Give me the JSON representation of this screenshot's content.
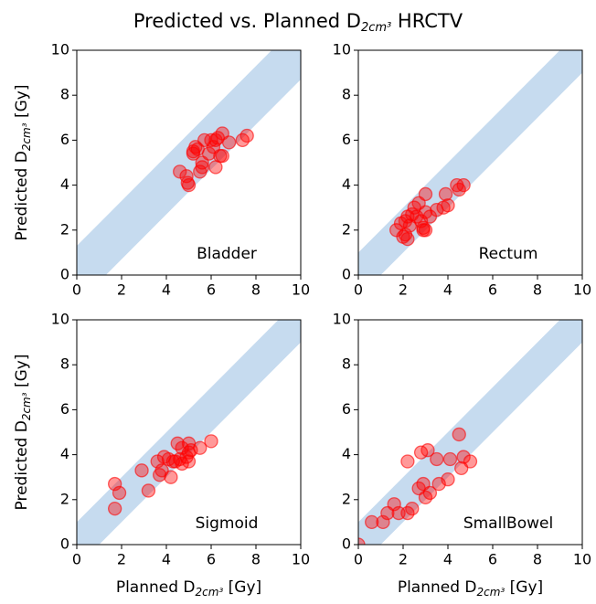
{
  "title": [
    "Predicted vs. Planned D",
    "2cm³",
    " HRCTV"
  ],
  "chart_data": [
    {
      "type": "scatter",
      "annotation": "Bladder",
      "ylabel": [
        "Predicted D",
        "2cm³",
        " [Gy]"
      ],
      "x": [
        4.6,
        4.9,
        5.0,
        4.95,
        5.2,
        5.3,
        5.4,
        5.5,
        5.6,
        5.6,
        5.7,
        5.9,
        6.0,
        6.1,
        6.2,
        6.2,
        6.3,
        6.4,
        6.5,
        6.5,
        6.8,
        7.4,
        7.6,
        5.2
      ],
      "y": [
        4.6,
        4.4,
        4.0,
        4.1,
        5.4,
        5.7,
        5.6,
        4.6,
        5.0,
        4.8,
        6.0,
        5.4,
        6.0,
        5.7,
        6.0,
        4.8,
        6.1,
        5.3,
        5.3,
        6.3,
        5.9,
        6.0,
        6.2,
        5.5
      ],
      "xlim": [
        0,
        10
      ],
      "ylim": [
        0,
        10
      ],
      "xticks": [
        0,
        2,
        4,
        6,
        8,
        10
      ],
      "yticks": [
        0,
        2,
        4,
        6,
        8,
        10
      ],
      "color": "#ff0000",
      "band_color": "#c6dbef",
      "band_halfwidth": 1.3
    },
    {
      "type": "scatter",
      "annotation": "Rectum",
      "x": [
        1.7,
        1.9,
        2.0,
        2.1,
        2.1,
        2.2,
        2.2,
        2.3,
        2.4,
        2.5,
        2.6,
        2.7,
        2.8,
        2.9,
        2.9,
        3.0,
        3.0,
        3.0,
        3.2,
        3.5,
        3.8,
        3.9,
        4.0,
        4.4,
        4.5,
        4.7
      ],
      "y": [
        2.0,
        2.3,
        1.7,
        1.8,
        2.4,
        1.6,
        2.6,
        2.2,
        2.7,
        3.0,
        2.6,
        3.2,
        2.4,
        2.0,
        2.1,
        2.0,
        2.8,
        3.6,
        2.6,
        2.9,
        3.0,
        3.6,
        3.1,
        4.0,
        3.8,
        4.0
      ],
      "xlim": [
        0,
        10
      ],
      "ylim": [
        0,
        10
      ],
      "xticks": [
        0,
        2,
        4,
        6,
        8,
        10
      ],
      "yticks": [
        0,
        2,
        4,
        6,
        8,
        10
      ],
      "color": "#ff0000",
      "band_color": "#c6dbef",
      "band_halfwidth": 1.0
    },
    {
      "type": "scatter",
      "annotation": "Sigmoid",
      "ylabel": [
        "Predicted D",
        "2cm³",
        " [Gy]"
      ],
      "xlabel": [
        "Planned D",
        "2cm³",
        " [Gy]"
      ],
      "x": [
        1.7,
        1.7,
        1.9,
        2.9,
        3.2,
        3.6,
        3.7,
        3.8,
        3.9,
        4.1,
        4.2,
        4.3,
        4.4,
        4.5,
        4.6,
        4.7,
        4.7,
        4.9,
        5.0,
        5.0,
        5.0,
        5.1,
        5.5,
        6.0
      ],
      "y": [
        1.6,
        2.7,
        2.3,
        3.3,
        2.4,
        3.7,
        3.1,
        3.3,
        3.9,
        3.8,
        3.0,
        3.7,
        3.7,
        4.5,
        3.8,
        4.3,
        3.6,
        3.9,
        3.7,
        4.1,
        4.5,
        4.2,
        4.3,
        4.6
      ],
      "xlim": [
        0,
        10
      ],
      "ylim": [
        0,
        10
      ],
      "xticks": [
        0,
        2,
        4,
        6,
        8,
        10
      ],
      "yticks": [
        0,
        2,
        4,
        6,
        8,
        10
      ],
      "color": "#ff0000",
      "band_color": "#c6dbef",
      "band_halfwidth": 1.0
    },
    {
      "type": "scatter",
      "annotation": "SmallBowel",
      "xlabel": [
        "Planned D",
        "2cm³",
        " [Gy]"
      ],
      "x": [
        0,
        0.6,
        1.1,
        1.3,
        1.6,
        1.8,
        2.2,
        2.2,
        2.4,
        2.7,
        2.8,
        2.9,
        3.0,
        3.1,
        3.2,
        3.5,
        3.6,
        4.0,
        4.1,
        4.5,
        4.6,
        4.7,
        5.0
      ],
      "y": [
        0,
        1.0,
        1.0,
        1.4,
        1.8,
        1.4,
        1.4,
        3.7,
        1.6,
        2.5,
        4.1,
        2.7,
        2.1,
        4.2,
        2.3,
        3.8,
        2.7,
        2.9,
        3.8,
        4.9,
        3.4,
        3.9,
        3.7
      ],
      "xlim": [
        0,
        10
      ],
      "ylim": [
        0,
        10
      ],
      "xticks": [
        0,
        2,
        4,
        6,
        8,
        10
      ],
      "yticks": [
        0,
        2,
        4,
        6,
        8,
        10
      ],
      "color": "#ff0000",
      "band_color": "#c6dbef",
      "band_halfwidth": 1.0
    }
  ]
}
